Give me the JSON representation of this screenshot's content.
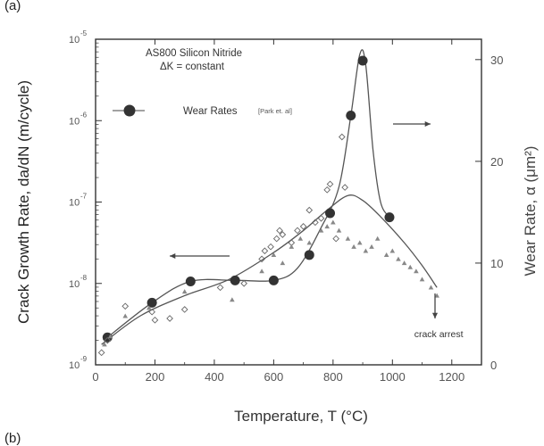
{
  "panel_top": "(a)",
  "panel_bottom": "(b)",
  "chart_data": {
    "type": "scatter",
    "title": "AS800 Silicon Nitride",
    "subtitle": "ΔK = constant",
    "xlabel": "Temperature, T (°C)",
    "ylabel_left": "Crack Growth Rate, da/dN (m/cycle)",
    "ylabel_right": "Wear Rate, α (μm²)",
    "xlim": [
      0,
      1300
    ],
    "x_ticks": [
      "0",
      "200",
      "400",
      "600",
      "800",
      "1000",
      "1200"
    ],
    "y_left_scale": "log",
    "y_left_lim_exp": [
      -9,
      -5
    ],
    "y_left_ticks": [
      {
        "base": "10",
        "exp": "-9"
      },
      {
        "base": "10",
        "exp": "-8"
      },
      {
        "base": "10",
        "exp": "-7"
      },
      {
        "base": "10",
        "exp": "-6"
      },
      {
        "base": "10",
        "exp": "-5"
      }
    ],
    "y_right_lim": [
      0,
      32
    ],
    "y_right_ticks": [
      "0",
      "10",
      "20",
      "30"
    ],
    "legend": {
      "label": "Wear Rates",
      "citation": "[Park et. al]",
      "position": "upper-left"
    },
    "annotations": [
      {
        "text": "crack arrest",
        "near_x": 1150
      }
    ],
    "arrows": [
      {
        "direction": "left",
        "meaning": "left axis"
      },
      {
        "direction": "right",
        "meaning": "right axis"
      },
      {
        "direction": "down",
        "meaning": "crack arrest"
      }
    ],
    "series": [
      {
        "name": "Wear Rates",
        "axis": "right",
        "marker": "filled-circle",
        "x": [
          40,
          190,
          320,
          470,
          600,
          720,
          790,
          860,
          900,
          990
        ],
        "y": [
          2.7,
          6.1,
          8.2,
          8.3,
          8.3,
          10.8,
          14.9,
          24.5,
          29.9,
          14.5
        ]
      },
      {
        "axis": "left",
        "marker": "open-diamond",
        "x": [
          20,
          40,
          100,
          190,
          200,
          250,
          300,
          420,
          500,
          560,
          570,
          590,
          610,
          620,
          630,
          660,
          680,
          700,
          720,
          740,
          760,
          780,
          790,
          810,
          830,
          840
        ],
        "y_exp": [
          -8.85,
          -8.7,
          -8.28,
          -8.35,
          -8.45,
          -8.43,
          -8.32,
          -8.05,
          -8.0,
          -7.7,
          -7.6,
          -7.55,
          -7.45,
          -7.35,
          -7.4,
          -7.5,
          -7.35,
          -7.3,
          -7.1,
          -7.25,
          -7.2,
          -6.85,
          -6.78,
          -7.45,
          -6.2,
          -6.82
        ]
      },
      {
        "axis": "left",
        "marker": "filled-triangle",
        "x": [
          30,
          50,
          100,
          180,
          300,
          460,
          560,
          600,
          630,
          660,
          690,
          720,
          760,
          780,
          800,
          820,
          850,
          870,
          890,
          910,
          930,
          950,
          980,
          1000,
          1020,
          1040,
          1060,
          1080,
          1100,
          1130,
          1150
        ],
        "y_exp": [
          -8.75,
          -8.65,
          -8.4,
          -8.3,
          -8.1,
          -8.2,
          -7.85,
          -7.65,
          -7.75,
          -7.55,
          -7.45,
          -7.5,
          -7.35,
          -7.3,
          -7.25,
          -7.35,
          -7.45,
          -7.55,
          -7.5,
          -7.6,
          -7.55,
          -7.45,
          -7.65,
          -7.6,
          -7.7,
          -7.75,
          -7.8,
          -7.85,
          -7.95,
          -8.05,
          -8.15
        ]
      }
    ],
    "curves": [
      {
        "axis": "left",
        "x": [
          20,
          150,
          300,
          450,
          600,
          700,
          780,
          850,
          900,
          960,
          1040,
          1100,
          1150
        ],
        "y_exp": [
          -8.75,
          -8.4,
          -8.15,
          -7.95,
          -7.62,
          -7.35,
          -7.1,
          -6.92,
          -6.98,
          -7.18,
          -7.5,
          -7.78,
          -8.05
        ]
      },
      {
        "axis": "right",
        "x": [
          40,
          190,
          320,
          470,
          600,
          680,
          760,
          820,
          860,
          890,
          910,
          935,
          960,
          990
        ],
        "y": [
          2.7,
          6.1,
          8.2,
          8.3,
          8.3,
          9.5,
          13.5,
          17.5,
          24.5,
          30.5,
          29.5,
          21,
          16,
          14.5
        ]
      }
    ]
  }
}
